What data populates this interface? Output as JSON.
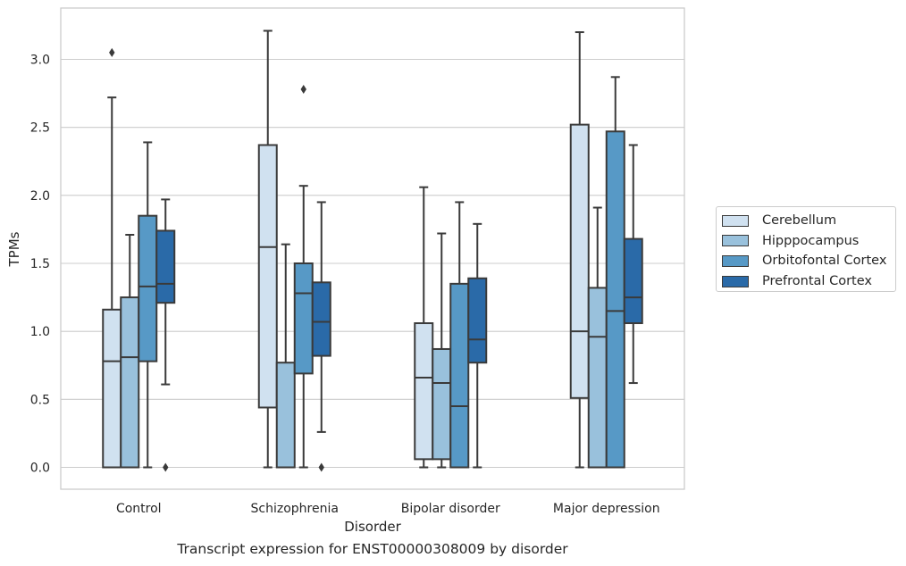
{
  "chart_data": {
    "type": "box",
    "xlabel": "Disorder",
    "ylabel": "TPMs",
    "caption": "Transcript expression for ENST00000308009 by disorder",
    "ylim": [
      -0.16,
      3.4
    ],
    "yticks": [
      "0.0",
      "0.5",
      "1.0",
      "1.5",
      "2.0",
      "2.5",
      "3.0"
    ],
    "grid": "horizontal",
    "legend_position": "right",
    "categories": [
      "Control",
      "Schizophrenia",
      "Bipolar disorder",
      "Major depression"
    ],
    "series": [
      {
        "name": "Cerebellum",
        "color": "#d0e1f0",
        "boxes": [
          {
            "whislo": 0.0,
            "q1": 0.0,
            "med": 0.78,
            "q3": 1.16,
            "whishi": 2.72,
            "fliers": [
              3.05
            ]
          },
          {
            "whislo": 0.0,
            "q1": 0.44,
            "med": 1.62,
            "q3": 2.37,
            "whishi": 3.21,
            "fliers": []
          },
          {
            "whislo": 0.0,
            "q1": 0.06,
            "med": 0.66,
            "q3": 1.06,
            "whishi": 2.06,
            "fliers": []
          },
          {
            "whislo": 0.0,
            "q1": 0.51,
            "med": 1.0,
            "q3": 2.52,
            "whishi": 3.2,
            "fliers": []
          }
        ]
      },
      {
        "name": "Hipppocampus",
        "color": "#99c1dc",
        "boxes": [
          {
            "whislo": 0.0,
            "q1": 0.0,
            "med": 0.81,
            "q3": 1.25,
            "whishi": 1.71,
            "fliers": []
          },
          {
            "whislo": 0.0,
            "q1": 0.0,
            "med": 0.0,
            "q3": 0.77,
            "whishi": 1.64,
            "fliers": []
          },
          {
            "whislo": 0.0,
            "q1": 0.06,
            "med": 0.62,
            "q3": 0.87,
            "whishi": 1.72,
            "fliers": []
          },
          {
            "whislo": 0.0,
            "q1": 0.0,
            "med": 0.96,
            "q3": 1.32,
            "whishi": 1.91,
            "fliers": []
          }
        ]
      },
      {
        "name": "Orbitofontal Cortex",
        "color": "#5799c6",
        "boxes": [
          {
            "whislo": 0.0,
            "q1": 0.78,
            "med": 1.33,
            "q3": 1.85,
            "whishi": 2.39,
            "fliers": []
          },
          {
            "whislo": 0.0,
            "q1": 0.69,
            "med": 1.28,
            "q3": 1.5,
            "whishi": 2.07,
            "fliers": [
              2.78
            ]
          },
          {
            "whislo": 0.0,
            "q1": 0.0,
            "med": 0.45,
            "q3": 1.35,
            "whishi": 1.95,
            "fliers": []
          },
          {
            "whislo": 0.0,
            "q1": 0.0,
            "med": 1.15,
            "q3": 2.47,
            "whishi": 2.87,
            "fliers": []
          }
        ]
      },
      {
        "name": "Prefrontal Cortex",
        "color": "#2a6aa8",
        "boxes": [
          {
            "whislo": 0.61,
            "q1": 1.21,
            "med": 1.35,
            "q3": 1.74,
            "whishi": 1.97,
            "fliers": [
              0.0
            ]
          },
          {
            "whislo": 0.26,
            "q1": 0.82,
            "med": 1.07,
            "q3": 1.36,
            "whishi": 1.95,
            "fliers": [
              0.0
            ]
          },
          {
            "whislo": 0.0,
            "q1": 0.77,
            "med": 0.94,
            "q3": 1.39,
            "whishi": 1.79,
            "fliers": []
          },
          {
            "whislo": 0.62,
            "q1": 1.06,
            "med": 1.25,
            "q3": 1.68,
            "whishi": 2.37,
            "fliers": []
          }
        ]
      }
    ]
  }
}
